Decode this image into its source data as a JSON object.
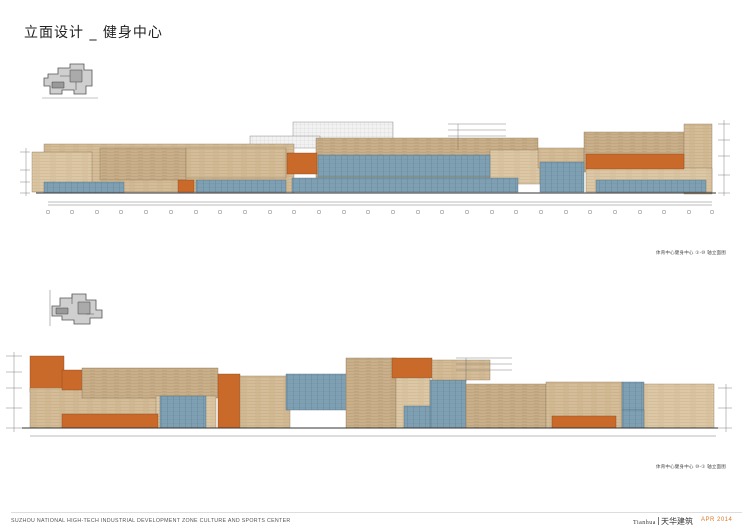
{
  "page": {
    "title": "立面设计 _ 健身中心",
    "footer_text": "SUZHOU NATIONAL HIGH-TECH INDUSTRIAL DEVELOPMENT ZONE  CULTURE AND SPORTS CENTER",
    "brand_en": "Tianhua",
    "brand_cn": "天华建筑",
    "date": "APR  2014"
  },
  "drawings": [
    {
      "caption": "体育中心健身中心 ①-⑩ 轴立面图"
    },
    {
      "caption": "体育中心健身中心 ⑩-① 轴立面图"
    }
  ],
  "colors": {
    "beige": "#d4bd98",
    "beige_light": "#dcc8a6",
    "beige_dark": "#c4aa82",
    "orange": "#c96a2a",
    "glass": "#7f9fb2",
    "glass_dark": "#5f7f93",
    "accent": "#e07b2c"
  }
}
